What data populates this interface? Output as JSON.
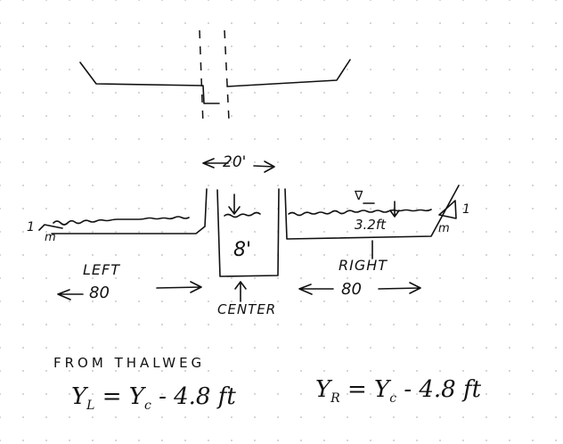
{
  "labels": {
    "top_width": "20'",
    "center_depth": "8'",
    "ws_symbol": "∇",
    "ws_depth": "3.2ft",
    "slope_left_1": "1",
    "slope_left_m": "m",
    "slope_right_1": "1",
    "slope_right_m": "m",
    "left": "LEFT",
    "left_width": "80",
    "right": "RIGHT",
    "right_width": "80",
    "center": "CENTER"
  },
  "notes": {
    "heading": "FROM THALWEG",
    "left_formula": {
      "var": "Y",
      "sub": "L",
      "rhs_var": "Y",
      "rhs_sub": "c",
      "rest": "- 4.8 ft"
    },
    "right_formula": {
      "var": "Y",
      "sub": "R",
      "rhs_var": "Y",
      "rhs_sub": "c",
      "rest": "- 4.8 ft"
    }
  }
}
